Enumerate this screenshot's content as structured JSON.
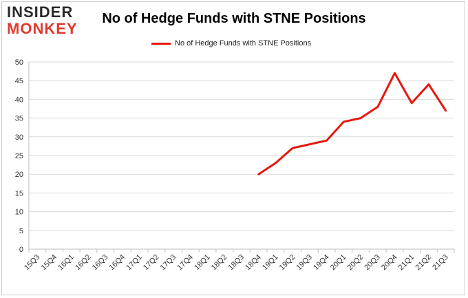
{
  "logo": {
    "line1": "INSIDER",
    "line2": "MONKEY"
  },
  "colors": {
    "series": "#e8160c",
    "grid": "#d9d9d9",
    "axis": "#bdbdbd",
    "logo_red": "#e03a2f"
  },
  "chart_data": {
    "type": "line",
    "title": "No of Hedge Funds with STNE Positions",
    "xlabel": "",
    "ylabel": "",
    "ylim": [
      0,
      50
    ],
    "yticks": [
      0,
      5,
      10,
      15,
      20,
      25,
      30,
      35,
      40,
      45,
      50
    ],
    "grid": true,
    "legend": "top-center",
    "categories": [
      "15Q3",
      "15Q4",
      "16Q1",
      "16Q2",
      "16Q3",
      "16Q4",
      "17Q1",
      "17Q2",
      "17Q3",
      "17Q4",
      "18Q1",
      "18Q2",
      "18Q3",
      "18Q4",
      "19Q1",
      "19Q2",
      "19Q3",
      "19Q4",
      "20Q1",
      "20Q2",
      "20Q3",
      "20Q4",
      "21Q1",
      "21Q2",
      "21Q3"
    ],
    "series": [
      {
        "name": "No of Hedge Funds with STNE Positions",
        "values": [
          null,
          null,
          null,
          null,
          null,
          null,
          null,
          null,
          null,
          null,
          null,
          null,
          null,
          20,
          23,
          27,
          28,
          29,
          34,
          35,
          38,
          47,
          39,
          44,
          37
        ]
      }
    ]
  }
}
